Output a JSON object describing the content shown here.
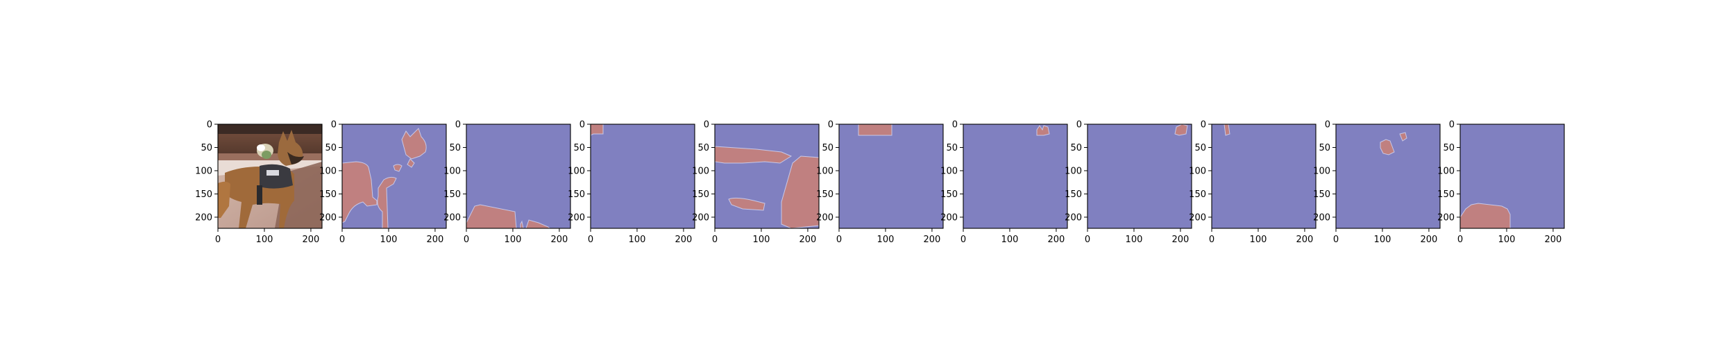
{
  "figure": {
    "panels": [
      {
        "id": "photo",
        "kind": "photo",
        "description": "dog in harness"
      },
      {
        "id": "mask-1",
        "kind": "mask",
        "palette": [
          "#8080c0",
          "#c08080"
        ]
      },
      {
        "id": "mask-2",
        "kind": "mask",
        "palette": [
          "#8080c0",
          "#c08080"
        ]
      },
      {
        "id": "mask-3",
        "kind": "mask",
        "palette": [
          "#8080c0",
          "#c08080"
        ]
      },
      {
        "id": "mask-4",
        "kind": "mask",
        "palette": [
          "#8080c0",
          "#c08080"
        ]
      },
      {
        "id": "mask-5",
        "kind": "mask",
        "palette": [
          "#8080c0",
          "#c08080"
        ]
      },
      {
        "id": "mask-6",
        "kind": "mask",
        "palette": [
          "#8080c0",
          "#c08080"
        ]
      },
      {
        "id": "mask-7",
        "kind": "mask",
        "palette": [
          "#8080c0",
          "#c08080"
        ]
      },
      {
        "id": "mask-8",
        "kind": "mask",
        "palette": [
          "#8080c0",
          "#c08080"
        ]
      },
      {
        "id": "mask-9",
        "kind": "mask",
        "palette": [
          "#8080c0",
          "#c08080"
        ]
      },
      {
        "id": "mask-10",
        "kind": "mask",
        "palette": [
          "#8080c0",
          "#c08080"
        ]
      }
    ],
    "x_ticks": [
      "0",
      "100",
      "200"
    ],
    "y_ticks": [
      "0",
      "50",
      "100",
      "150",
      "200"
    ]
  }
}
